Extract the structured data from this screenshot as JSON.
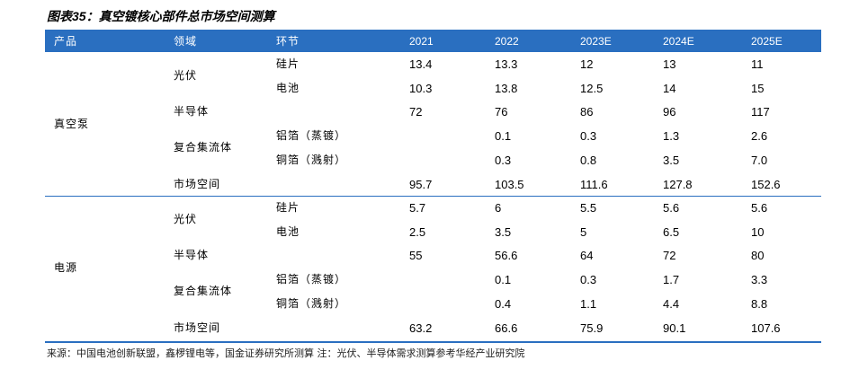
{
  "title": "图表35：真空镀核心部件总市场空间测算",
  "table": {
    "header": [
      "产品",
      "领域",
      "环节",
      "2021",
      "2022",
      "2023E",
      "2024E",
      "2025E"
    ],
    "groups": [
      {
        "product": "真空泵",
        "domains": [
          {
            "label": "光伏",
            "rows": [
              {
                "segment": "硅片",
                "values": [
                  "13.4",
                  "13.3",
                  "12",
                  "13",
                  "11"
                ]
              },
              {
                "segment": "电池",
                "values": [
                  "10.3",
                  "13.8",
                  "12.5",
                  "14",
                  "15"
                ]
              }
            ]
          },
          {
            "label": "半导体",
            "rows": [
              {
                "segment": null,
                "values": [
                  "72",
                  "76",
                  "86",
                  "96",
                  "117"
                ]
              }
            ]
          },
          {
            "label": "复合集流体",
            "rows": [
              {
                "segment": "铝箔（蒸镀）",
                "values": [
                  null,
                  "0.1",
                  "0.3",
                  "1.3",
                  "2.6"
                ]
              },
              {
                "segment": "铜箔（溅射）",
                "values": [
                  null,
                  "0.3",
                  "0.8",
                  "3.5",
                  "7.0"
                ]
              }
            ]
          },
          {
            "label": "市场空间",
            "rows": [
              {
                "segment": null,
                "values": [
                  "95.7",
                  "103.5",
                  "111.6",
                  "127.8",
                  "152.6"
                ]
              }
            ]
          }
        ]
      },
      {
        "product": "电源",
        "domains": [
          {
            "label": "光伏",
            "rows": [
              {
                "segment": "硅片",
                "values": [
                  "5.7",
                  "6",
                  "5.5",
                  "5.6",
                  "5.6"
                ]
              },
              {
                "segment": "电池",
                "values": [
                  "2.5",
                  "3.5",
                  "5",
                  "6.5",
                  "10"
                ]
              }
            ]
          },
          {
            "label": "半导体",
            "rows": [
              {
                "segment": null,
                "values": [
                  "55",
                  "56.6",
                  "64",
                  "72",
                  "80"
                ]
              }
            ]
          },
          {
            "label": "复合集流体",
            "rows": [
              {
                "segment": "铝箔（蒸镀）",
                "values": [
                  null,
                  "0.1",
                  "0.3",
                  "1.7",
                  "3.3"
                ]
              },
              {
                "segment": "铜箔（溅射）",
                "values": [
                  null,
                  "0.4",
                  "1.1",
                  "4.4",
                  "8.8"
                ]
              }
            ]
          },
          {
            "label": "市场空间",
            "rows": [
              {
                "segment": null,
                "values": [
                  "63.2",
                  "66.6",
                  "75.9",
                  "90.1",
                  "107.6"
                ]
              }
            ]
          }
        ]
      }
    ]
  },
  "note": "来源：中国电池创新联盟，鑫椤锂电等，国金证券研究所测算 注：光伏、半导体需求测算参考华经产业研究院"
}
